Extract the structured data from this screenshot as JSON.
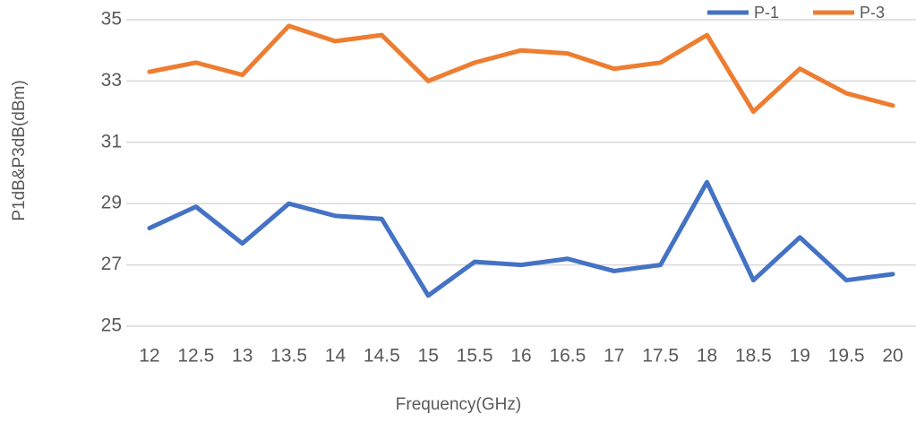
{
  "chart_data": {
    "type": "line",
    "x_label": "Frequency(GHz)",
    "y_label": "P1dB&P3dB(dBm)",
    "categories": [
      "12",
      "12.5",
      "13",
      "13.5",
      "14",
      "14.5",
      "15",
      "15.5",
      "16",
      "16.5",
      "17",
      "17.5",
      "18",
      "18.5",
      "19",
      "19.5",
      "20"
    ],
    "series": [
      {
        "name": "P-1",
        "color": "#4472c4",
        "values": [
          28.2,
          28.9,
          27.7,
          29.0,
          28.6,
          28.5,
          26.0,
          27.1,
          27.0,
          27.2,
          26.8,
          27.0,
          29.7,
          26.5,
          27.9,
          26.5,
          26.7
        ]
      },
      {
        "name": "P-3",
        "color": "#ed7d31",
        "values": [
          33.3,
          33.6,
          33.2,
          34.8,
          34.3,
          34.5,
          33.0,
          33.6,
          34.0,
          33.9,
          33.4,
          33.6,
          34.5,
          32.0,
          33.4,
          32.6,
          32.2
        ]
      }
    ],
    "ylim": [
      25,
      35
    ],
    "yticks": [
      25,
      27,
      29,
      31,
      33,
      35
    ],
    "grid": true,
    "legend": "top-right"
  }
}
